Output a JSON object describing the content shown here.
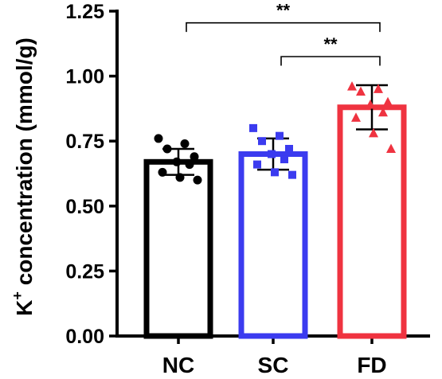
{
  "chart_data": {
    "type": "bar",
    "title": "",
    "ylabel_main": "K",
    "ylabel_sup": "+",
    "ylabel_rest": " concentration (mmol/g)",
    "ylim": [
      0,
      1.25
    ],
    "yticks": [
      "0.00",
      "0.25",
      "0.50",
      "0.75",
      "1.00",
      "1.25"
    ],
    "grid": false,
    "legend": "none",
    "categories": [
      "NC",
      "SC",
      "FD"
    ],
    "colors": [
      "#000000",
      "#3b3bef",
      "#ef3340"
    ],
    "markers": [
      "circle",
      "square",
      "triangle"
    ],
    "values": [
      0.67,
      0.7,
      0.88
    ],
    "errors": [
      0.05,
      0.06,
      0.085
    ],
    "points": [
      [
        0.76,
        0.74,
        0.72,
        0.69,
        0.67,
        0.66,
        0.63,
        0.61,
        0.6
      ],
      [
        0.8,
        0.77,
        0.75,
        0.72,
        0.7,
        0.68,
        0.66,
        0.63,
        0.62
      ],
      [
        0.96,
        0.95,
        0.94,
        0.9,
        0.89,
        0.86,
        0.84,
        0.78,
        0.72
      ]
    ],
    "significance": [
      {
        "from": 0,
        "to": 2,
        "label": "**",
        "y": 1.205
      },
      {
        "from": 1,
        "to": 2,
        "label": "**",
        "y": 1.075
      }
    ]
  }
}
